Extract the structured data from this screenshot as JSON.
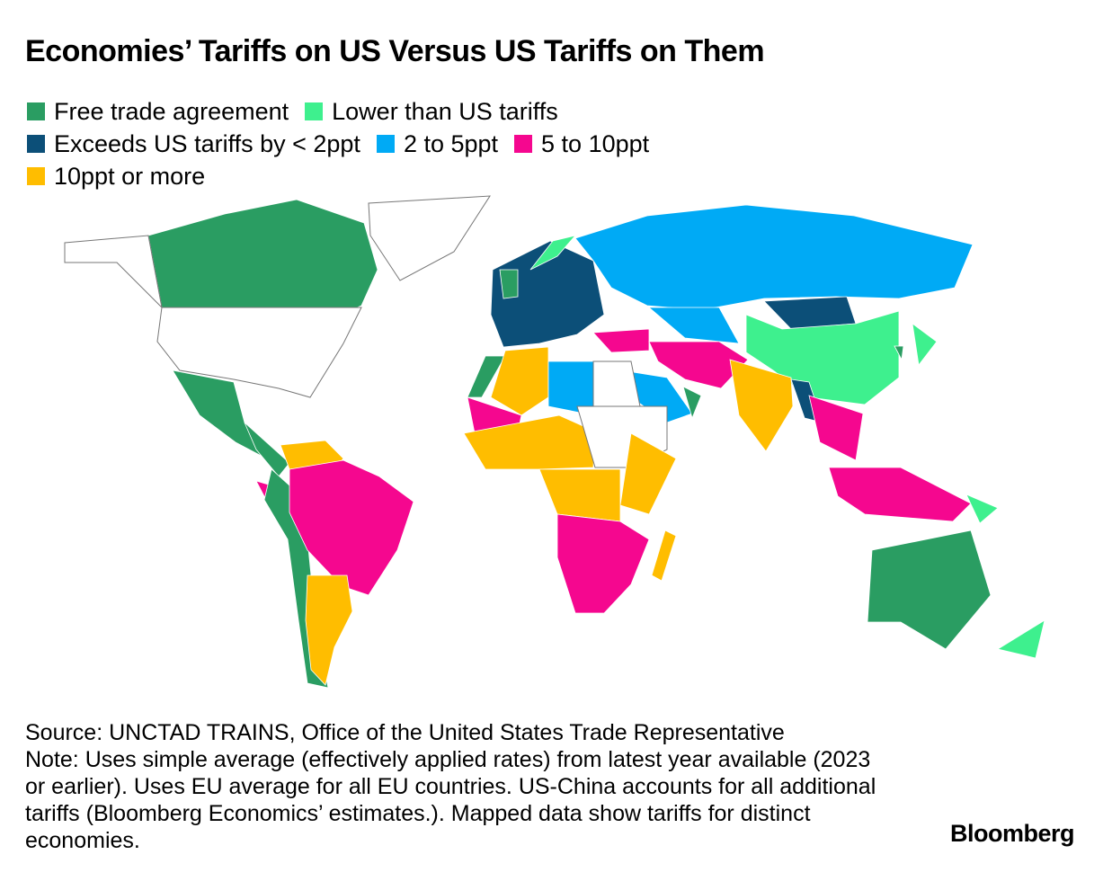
{
  "chart_data": {
    "type": "choropleth",
    "title": "Economies’ Tariffs on US Versus US Tariffs on Them",
    "legend": [
      {
        "key": "fta",
        "label": "Free trade agreement",
        "color": "#2a9d62"
      },
      {
        "key": "lower",
        "label": "Lower than US tariffs",
        "color": "#3ef08e"
      },
      {
        "key": "lt2",
        "label": "Exceeds US tariffs by < 2ppt",
        "color": "#0c4f78"
      },
      {
        "key": "2to5",
        "label": "2 to 5ppt",
        "color": "#00aaf5"
      },
      {
        "key": "5to10",
        "label": "5 to 10ppt",
        "color": "#f5078f"
      },
      {
        "key": "10plus",
        "label": "10ppt or more",
        "color": "#ffbd00"
      },
      {
        "key": "none",
        "label": "",
        "color": "#ffffff"
      }
    ],
    "regions": [
      {
        "name": "Canada",
        "category": "fta"
      },
      {
        "name": "Alaska (US)",
        "category": "none"
      },
      {
        "name": "Greenland",
        "category": "none"
      },
      {
        "name": "United States",
        "category": "none"
      },
      {
        "name": "Mexico",
        "category": "fta"
      },
      {
        "name": "Central America",
        "category": "fta"
      },
      {
        "name": "Colombia/Venezuela/Guyana",
        "category": "10plus"
      },
      {
        "name": "Ecuador",
        "category": "5to10"
      },
      {
        "name": "Peru/Chile",
        "category": "fta"
      },
      {
        "name": "Brazil/Bolivia/Paraguay",
        "category": "5to10"
      },
      {
        "name": "Argentina",
        "category": "10plus"
      },
      {
        "name": "European Union",
        "category": "lt2"
      },
      {
        "name": "United Kingdom",
        "category": "fta"
      },
      {
        "name": "Norway",
        "category": "lower"
      },
      {
        "name": "Russia",
        "category": "2to5"
      },
      {
        "name": "Central Asia",
        "category": "2to5"
      },
      {
        "name": "Mongolia",
        "category": "lt2"
      },
      {
        "name": "China",
        "category": "lower"
      },
      {
        "name": "Japan",
        "category": "lower"
      },
      {
        "name": "South Korea",
        "category": "fta"
      },
      {
        "name": "Turkey",
        "category": "5to10"
      },
      {
        "name": "Iran/Afghanistan/Pakistan",
        "category": "5to10"
      },
      {
        "name": "Saudi Arabia",
        "category": "2to5"
      },
      {
        "name": "Oman",
        "category": "fta"
      },
      {
        "name": "India",
        "category": "10plus"
      },
      {
        "name": "Bangladesh/Myanmar",
        "category": "lt2"
      },
      {
        "name": "Southeast Asia",
        "category": "5to10"
      },
      {
        "name": "Indonesia/Malaysia",
        "category": "5to10"
      },
      {
        "name": "Papua New Guinea",
        "category": "lower"
      },
      {
        "name": "Australia",
        "category": "fta"
      },
      {
        "name": "New Zealand",
        "category": "lower"
      },
      {
        "name": "Morocco",
        "category": "fta"
      },
      {
        "name": "Algeria",
        "category": "10plus"
      },
      {
        "name": "Libya",
        "category": "2to5"
      },
      {
        "name": "Egypt",
        "category": "none"
      },
      {
        "name": "Mali/Mauritania",
        "category": "5to10"
      },
      {
        "name": "West Africa",
        "category": "10plus"
      },
      {
        "name": "Sudan/Ethiopia region",
        "category": "none"
      },
      {
        "name": "East Africa",
        "category": "10plus"
      },
      {
        "name": "Central Africa",
        "category": "10plus"
      },
      {
        "name": "Southern Africa",
        "category": "5to10"
      },
      {
        "name": "Madagascar",
        "category": "10plus"
      }
    ]
  },
  "source": "Source: UNCTAD TRAINS, Office of the United States Trade Representative",
  "note": "Note: Uses simple average (effectively applied rates) from latest year available (2023 or earlier). Uses EU average for all EU countries. US-China accounts for all additional tariffs (Bloomberg Economics’ estimates.). Mapped data show tariffs for distinct economies.",
  "brand": "Bloomberg"
}
